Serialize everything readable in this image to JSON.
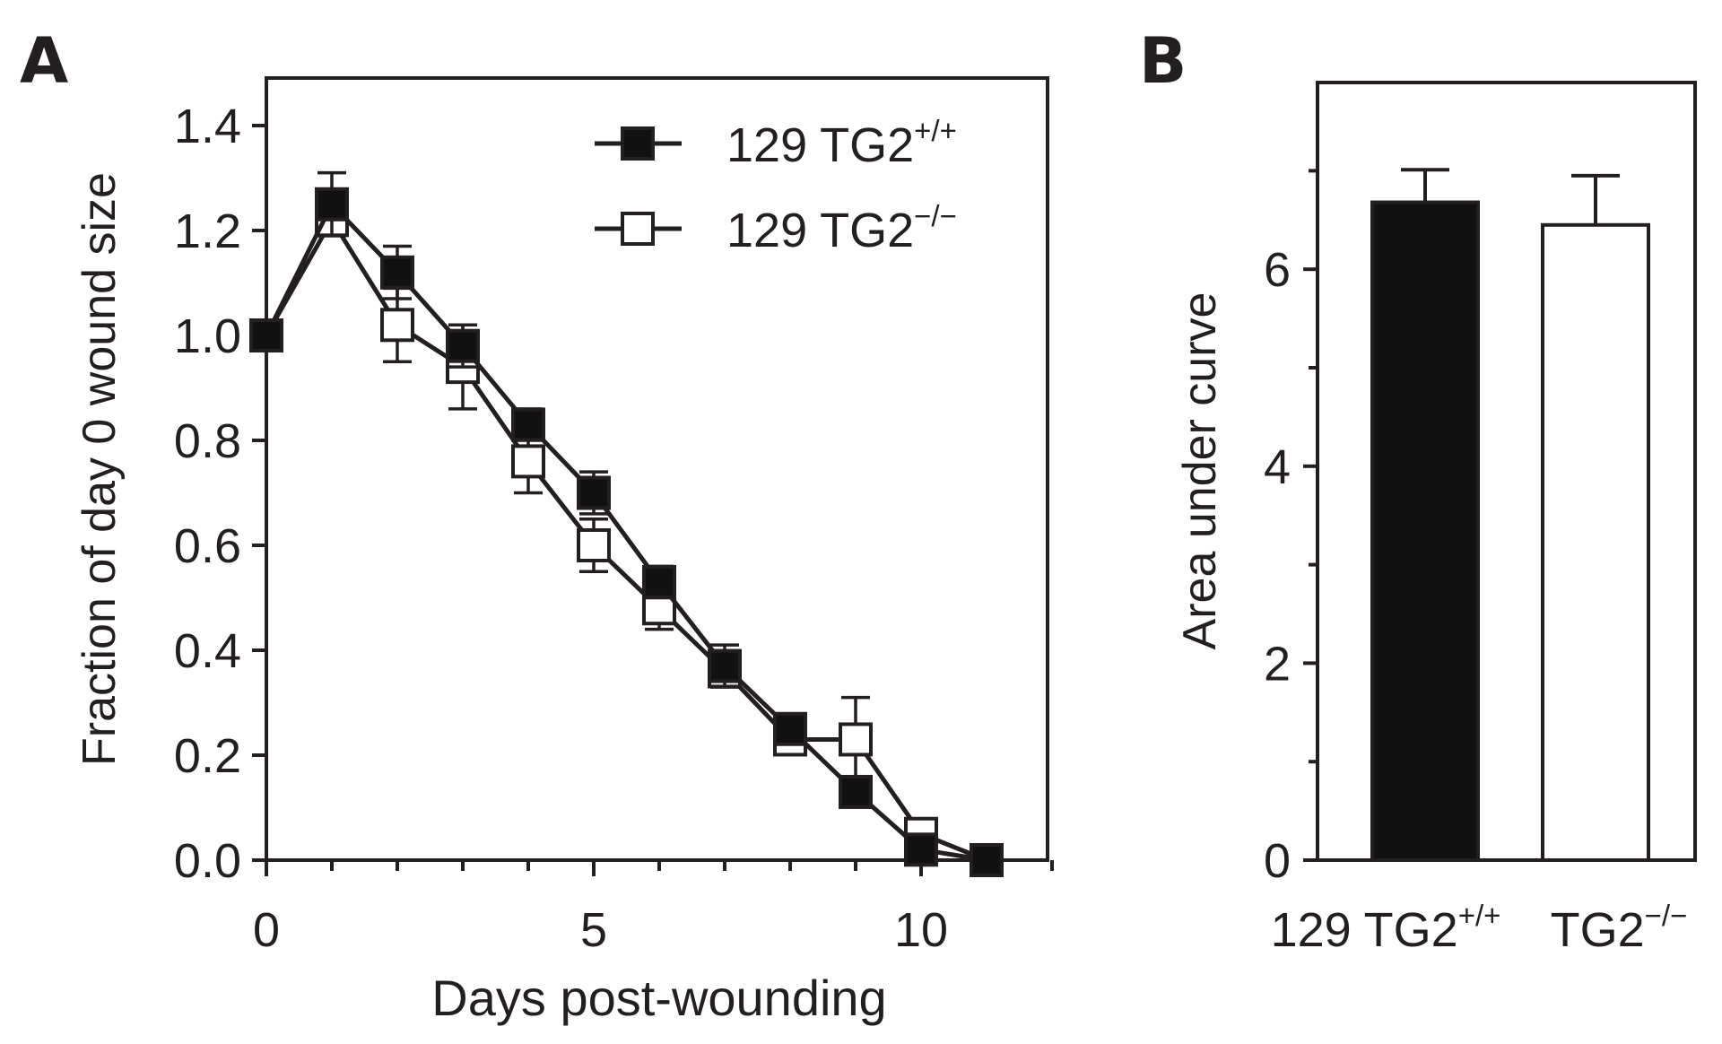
{
  "colors": {
    "ink": "#231f20",
    "background": "#ffffff",
    "filled": "#111111",
    "open": "#ffffff"
  },
  "chart_data": [
    {
      "panel": "A",
      "type": "line",
      "title": "",
      "xlabel": "Days post-wounding",
      "ylabel": "Fraction of day 0 wound size",
      "xlim": [
        0,
        12
      ],
      "ylim": [
        0,
        1.5
      ],
      "xticks": [
        0,
        5,
        10
      ],
      "xtick_labels": [
        "0",
        "5",
        "10"
      ],
      "yticks": [
        0,
        0.2,
        0.4,
        0.6,
        0.8,
        1.0,
        1.2,
        1.4
      ],
      "ytick_labels": [
        "0.0",
        "0.2",
        "0.4",
        "0.6",
        "0.8",
        "1.0",
        "1.2",
        "1.4"
      ],
      "grid": false,
      "legend_position": "top-right",
      "series": [
        {
          "name": "129 TG2+/+",
          "label_base": "129 TG2",
          "label_sup": "+/+",
          "marker": "filled-square",
          "x": [
            0,
            1,
            2,
            3,
            4,
            5,
            6,
            7,
            8,
            9,
            10,
            11
          ],
          "values": [
            1.0,
            1.25,
            1.12,
            0.98,
            0.83,
            0.7,
            0.53,
            0.37,
            0.25,
            0.13,
            0.02,
            0.0
          ],
          "error": [
            0,
            0.06,
            0.05,
            0.04,
            0.03,
            0.04,
            0.03,
            0.04,
            0.02,
            0.02,
            0.01,
            0.0
          ]
        },
        {
          "name": "129 TG2−/−",
          "label_base": "129 TG2",
          "label_sup": "−/−",
          "marker": "open-square",
          "x": [
            0,
            1,
            2,
            3,
            4,
            5,
            6,
            7,
            8,
            9,
            10,
            11
          ],
          "values": [
            1.0,
            1.22,
            1.02,
            0.94,
            0.76,
            0.6,
            0.48,
            0.36,
            0.23,
            0.23,
            0.05,
            0.0
          ],
          "error": [
            0,
            0.03,
            0.07,
            0.08,
            0.06,
            0.05,
            0.04,
            0.03,
            0.02,
            0.08,
            0.01,
            0.0
          ]
        }
      ]
    },
    {
      "panel": "B",
      "type": "bar",
      "title": "",
      "xlabel": "",
      "ylabel": "Area under curve",
      "ylim": [
        0,
        7.9
      ],
      "yticks": [
        0,
        2,
        4,
        6
      ],
      "ytick_labels": [
        "0",
        "2",
        "4",
        "6"
      ],
      "minor_yticks": [
        1,
        3,
        5,
        7
      ],
      "grid": false,
      "categories": [
        {
          "name": "129 TG2+/+",
          "label_base": "129 TG2",
          "label_sup": "+/+",
          "fill": "filled"
        },
        {
          "name": "TG2−/−",
          "label_base": "TG2",
          "label_sup": "−/−",
          "fill": "open"
        }
      ],
      "values": [
        6.68,
        6.45
      ],
      "error": [
        0.33,
        0.5
      ]
    }
  ]
}
